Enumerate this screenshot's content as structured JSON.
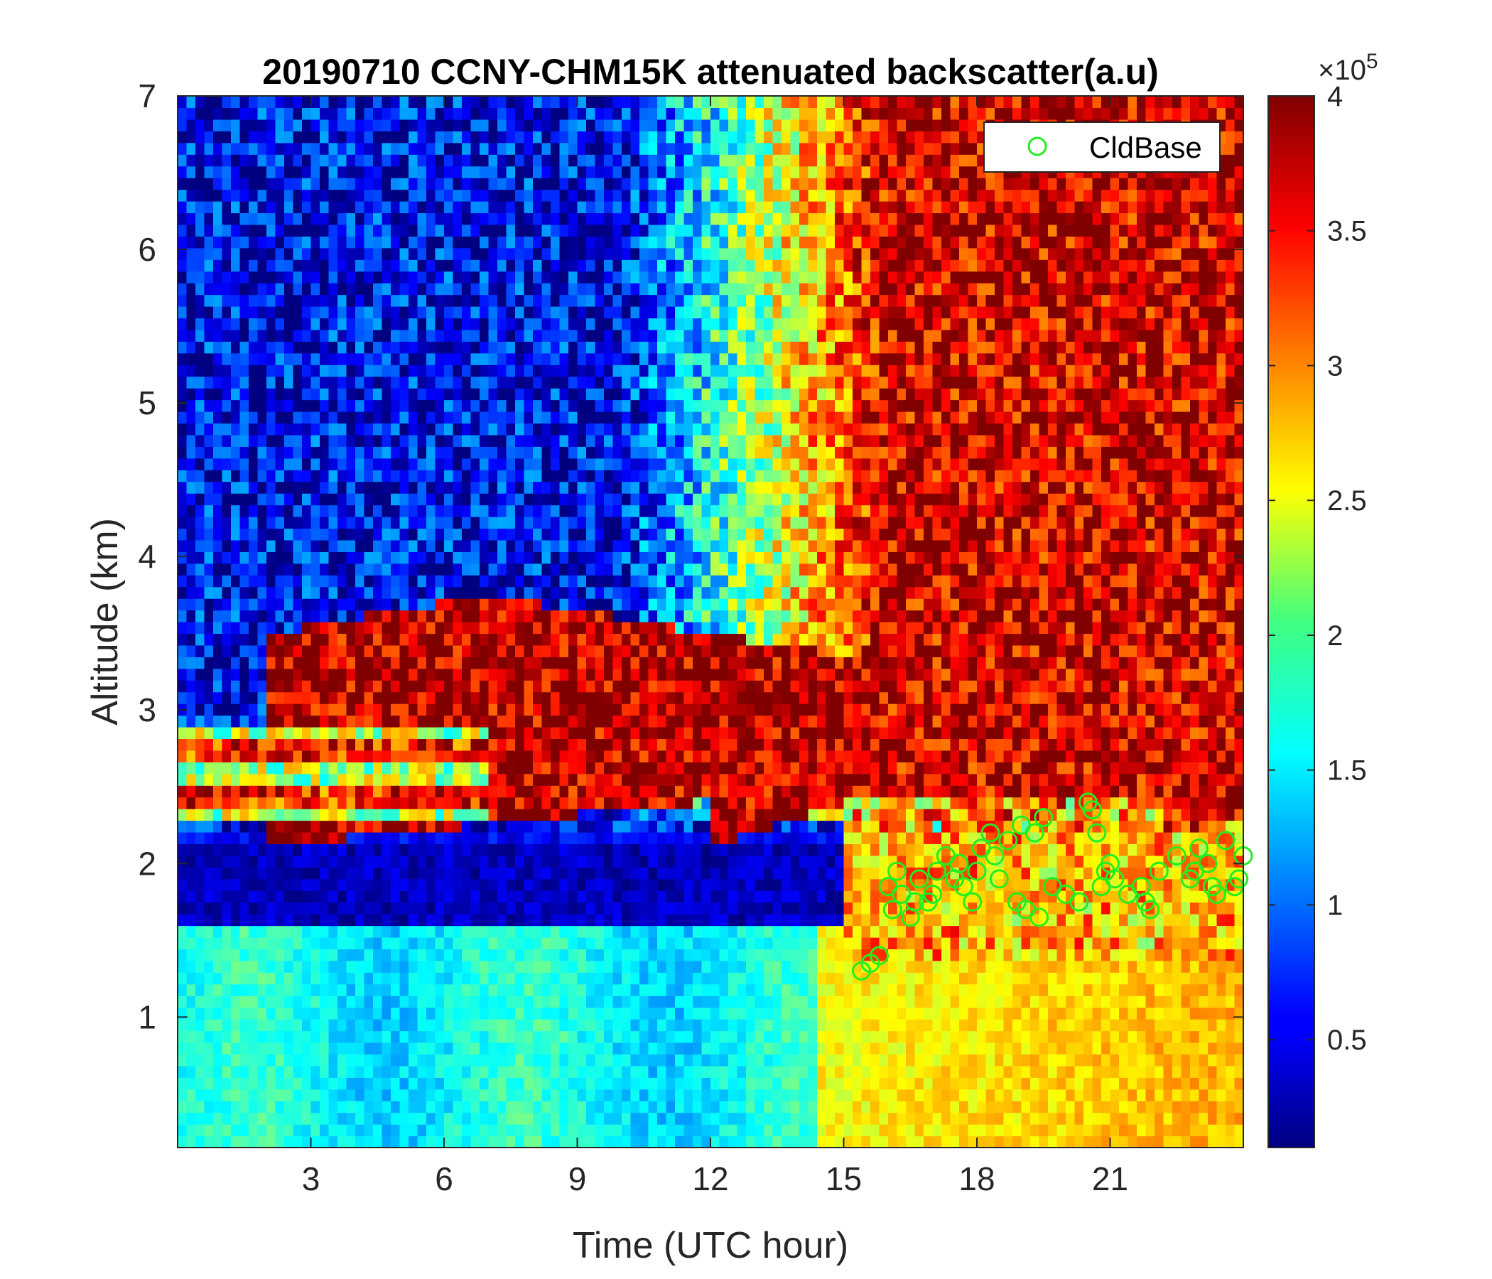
{
  "chart_data": {
    "type": "heatmap",
    "title": "20190710 CCNY-CHM15K attenuated backscatter(a.u)",
    "xlabel": "Time (UTC hour)",
    "ylabel": "Altitude (km)",
    "xlim": [
      0,
      24
    ],
    "ylim": [
      0.15,
      7
    ],
    "xticks": [
      3,
      6,
      9,
      12,
      15,
      18,
      21
    ],
    "yticks": [
      1,
      2,
      3,
      4,
      5,
      6,
      7
    ],
    "colorbar": {
      "range": [
        0.1,
        4
      ],
      "ticks": [
        0.5,
        1,
        1.5,
        2,
        2.5,
        3,
        3.5,
        4
      ],
      "tick_labels": [
        "0.5",
        "1",
        "1.5",
        "2",
        "2.5",
        "3",
        "3.5",
        "4"
      ],
      "multiplier_prefix": "×10",
      "multiplier_exponent": "5",
      "colormap": "jet"
    },
    "legend": {
      "location": "top-right",
      "entries": [
        {
          "name": "CldBase",
          "marker": "circle",
          "color": "#22ee22"
        }
      ]
    },
    "series": [
      {
        "name": "CldBase",
        "marker": "circle",
        "color": "#22ee22",
        "x": [
          15.4,
          15.6,
          15.8,
          16.0,
          16.1,
          16.3,
          16.5,
          16.7,
          16.9,
          17.1,
          17.3,
          17.5,
          17.7,
          17.9,
          18.1,
          18.3,
          18.5,
          18.7,
          18.9,
          19.1,
          19.3,
          19.5,
          19.7,
          20.0,
          20.3,
          20.5,
          20.7,
          20.9,
          21.1,
          21.4,
          21.7,
          21.9,
          22.1,
          22.5,
          22.8,
          23.0,
          23.2,
          23.4,
          23.6,
          23.8,
          24.0,
          16.2,
          16.6,
          17.0,
          17.6,
          18.0,
          18.4,
          19.0,
          19.4,
          20.6,
          20.8,
          21.0,
          21.8,
          22.9,
          23.3,
          23.9
        ],
        "y": [
          1.3,
          1.35,
          1.4,
          1.85,
          1.7,
          1.8,
          1.65,
          1.9,
          1.75,
          1.95,
          2.05,
          1.9,
          1.85,
          1.75,
          2.1,
          2.2,
          1.9,
          2.15,
          1.75,
          1.7,
          2.2,
          2.3,
          1.85,
          1.8,
          1.75,
          2.4,
          2.2,
          1.95,
          1.9,
          1.8,
          1.85,
          1.7,
          1.95,
          2.05,
          1.9,
          2.1,
          2.0,
          1.8,
          2.15,
          1.85,
          2.05,
          1.95,
          1.75,
          1.8,
          2.0,
          1.95,
          2.05,
          2.25,
          1.65,
          2.35,
          1.85,
          2.0,
          1.75,
          1.95,
          1.85,
          1.9
        ]
      }
    ]
  }
}
